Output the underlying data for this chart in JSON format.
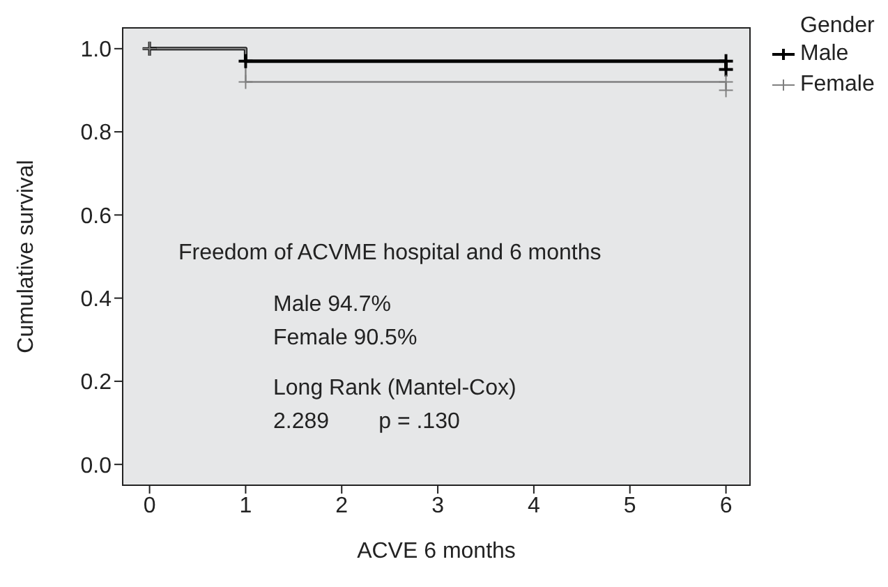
{
  "chart_data": {
    "type": "step",
    "xlabel": "ACVE 6 months",
    "ylabel": "Cumulative survival",
    "legend_title": "Gender",
    "legend": "top right",
    "marker": "cross",
    "xlim": [
      -0.28,
      6.25
    ],
    "xticks": [
      0,
      1,
      2,
      3,
      4,
      5,
      6
    ],
    "ylim": [
      -0.05,
      1.05
    ],
    "yticks": [
      {
        "value": 0,
        "label": "0.0"
      },
      0.2,
      0.4,
      0.6,
      0.8,
      {
        "value": 1,
        "label": "1.0"
      }
    ],
    "series": [
      {
        "name": "Male",
        "color": "#000000",
        "x": [
          0,
          1,
          6,
          6
        ],
        "values": [
          1.0,
          0.97,
          0.97,
          0.95
        ]
      },
      {
        "name": "Female",
        "color": "#808080",
        "x": [
          0,
          1,
          6,
          6
        ],
        "values": [
          1.0,
          0.92,
          0.92,
          0.9
        ]
      }
    ],
    "annotations": [
      "Freedom of ACVME hospital and 6 months",
      "Male 94.7%",
      "Female 90.5%",
      "Long Rank (Mantel-Cox)",
      "2.289        p = .130"
    ]
  }
}
